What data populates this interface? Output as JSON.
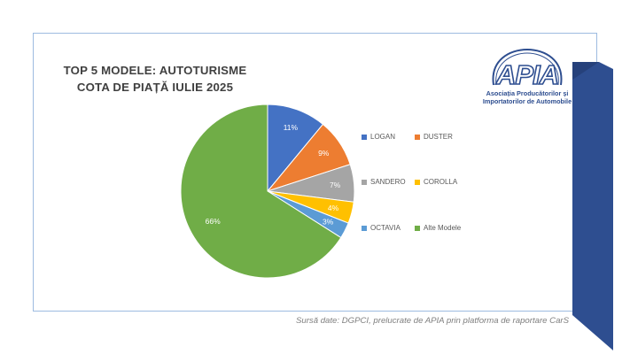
{
  "title": {
    "line1": "TOP 5 MODELE: AUTOTURISME",
    "line2": "COTA DE PIAȚĂ IULIE 2025"
  },
  "logo": {
    "mark": "APIA",
    "line1": "Asociația Producătorilor și",
    "line2": "Importatorilor de Automobile",
    "color": "#2e4e90"
  },
  "source": "Sursă date: DGPCI, prelucrate de APIA prin platforma de raportare CarS",
  "chart_data": {
    "type": "pie",
    "title": "TOP 5 MODELE: AUTOTURISME COTA DE PIAȚĂ IULIE 2025",
    "legend_position": "right",
    "slices": [
      {
        "label": "LOGAN",
        "value": 11,
        "display": "11%",
        "color": "#4472c4"
      },
      {
        "label": "DUSTER",
        "value": 9,
        "display": "9%",
        "color": "#ed7d31"
      },
      {
        "label": "SANDERO",
        "value": 7,
        "display": "7%",
        "color": "#a5a5a5"
      },
      {
        "label": "COROLLA",
        "value": 4,
        "display": "4%",
        "color": "#ffc000"
      },
      {
        "label": "OCTAVIA",
        "value": 3,
        "display": "3%",
        "color": "#5b9bd5"
      },
      {
        "label": "Alte Modele",
        "value": 66,
        "display": "66%",
        "color": "#70ad47"
      }
    ]
  }
}
